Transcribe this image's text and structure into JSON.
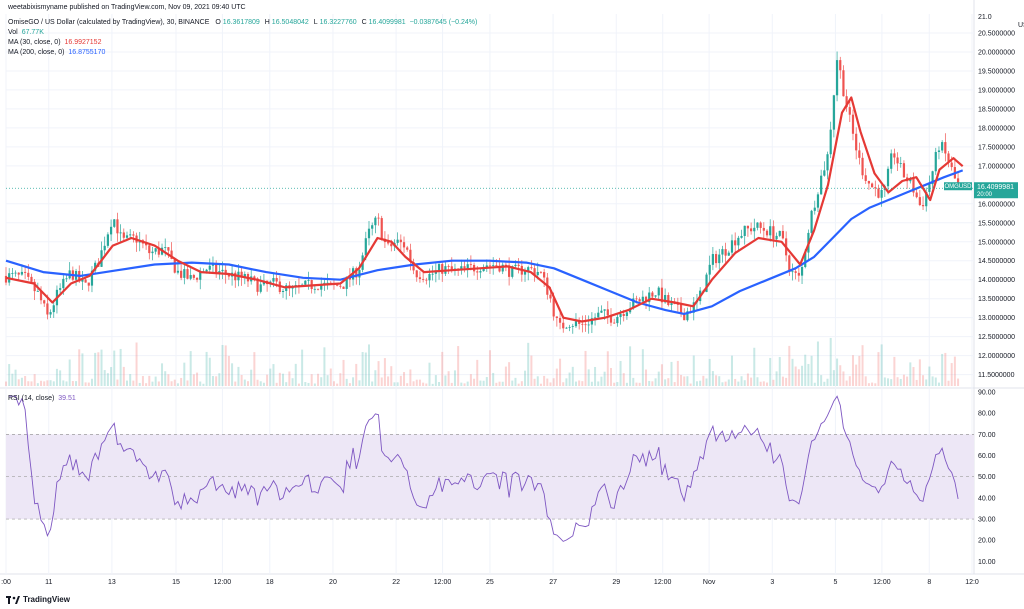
{
  "publisher_line": "weetabixismyname published on TradingView.com, Nov 09, 2021 09:40 UTC",
  "header": {
    "symbol": "OmiseGO / US Dollar (calculated by TradingView), 30, BINANCE",
    "o_label": "O",
    "o": "16.3617809",
    "h_label": "H",
    "h": "16.5048042",
    "l_label": "L",
    "l": "16.3227760",
    "c_label": "C",
    "c": "16.4099981",
    "change": "−0.0387645 (−0.24%)",
    "vol_label": "Vol",
    "vol": "67.77K",
    "ma30_label": "MA (30, close, 0)",
    "ma30": "16.9927152",
    "ma200_label": "MA (200, close, 0)",
    "ma200": "16.8755170"
  },
  "rsi_header": {
    "label": "RSI (14, close)",
    "value": "39.51"
  },
  "price_tag": {
    "symbol": "OMGUSD",
    "value": "16.4099981",
    "countdown": "20:00"
  },
  "footer": {
    "brand": "TradingView"
  },
  "colors": {
    "up": "#26a69a",
    "down": "#ef5350",
    "ma30": "#e53935",
    "ma200": "#2962ff",
    "rsi": "#7e57c2",
    "rsi_band": "#ede7f6",
    "grid": "#f0f3fa",
    "axis_text": "#131722"
  },
  "chart_data": [
    {
      "type": "candlestick",
      "title": "OmiseGO / US Dollar (calculated by TradingView), 30, BINANCE",
      "currency_label": "USD",
      "ylim": [
        11.2,
        21.0
      ],
      "yticks": [
        11.5,
        12.0,
        12.5,
        13.0,
        13.5,
        14.0,
        14.5,
        15.0,
        15.5,
        16.0,
        17.0,
        17.5,
        18.0,
        18.5,
        19.0,
        19.5,
        20.0,
        20.5
      ],
      "ytick_labels": [
        "11.5000000",
        "12.0000000",
        "12.5000000",
        "13.0000000",
        "13.5000000",
        "14.0000000",
        "14.5000000",
        "15.0000000",
        "15.5000000",
        "16.0000000",
        "17.0000000",
        "17.5000000",
        "18.0000000",
        "18.5000000",
        "19.0000000",
        "19.5000000",
        "20.0000000",
        "20.5000000"
      ],
      "top_tick_label": "21.0",
      "x_labels": [
        {
          "label": ":00",
          "t": 0.0
        },
        {
          "label": "11",
          "t": 0.046
        },
        {
          "label": "13",
          "t": 0.114
        },
        {
          "label": "15",
          "t": 0.183
        },
        {
          "label": "12:00",
          "t": 0.233
        },
        {
          "label": "18",
          "t": 0.284
        },
        {
          "label": "20",
          "t": 0.352
        },
        {
          "label": "22",
          "t": 0.42
        },
        {
          "label": "12:00",
          "t": 0.47
        },
        {
          "label": "25",
          "t": 0.521
        },
        {
          "label": "27",
          "t": 0.589
        },
        {
          "label": "29",
          "t": 0.657
        },
        {
          "label": "12:00",
          "t": 0.707
        },
        {
          "label": "Nov",
          "t": 0.757
        },
        {
          "label": "3",
          "t": 0.825
        },
        {
          "label": "5",
          "t": 0.893
        },
        {
          "label": "12:00",
          "t": 0.943
        },
        {
          "label": "8",
          "t": 0.994
        },
        {
          "label": "12:0",
          "t": 1.04
        }
      ],
      "close_path": [
        [
          0.0,
          14.1
        ],
        [
          0.02,
          14.05
        ],
        [
          0.035,
          13.6
        ],
        [
          0.045,
          13.0
        ],
        [
          0.055,
          13.6
        ],
        [
          0.07,
          14.2
        ],
        [
          0.085,
          13.8
        ],
        [
          0.1,
          14.5
        ],
        [
          0.115,
          15.7
        ],
        [
          0.125,
          15.0
        ],
        [
          0.14,
          15.1
        ],
        [
          0.155,
          14.7
        ],
        [
          0.17,
          14.8
        ],
        [
          0.185,
          14.2
        ],
        [
          0.2,
          14.0
        ],
        [
          0.215,
          14.3
        ],
        [
          0.23,
          14.2
        ],
        [
          0.245,
          14.1
        ],
        [
          0.26,
          14.0
        ],
        [
          0.275,
          13.8
        ],
        [
          0.29,
          13.9
        ],
        [
          0.305,
          13.7
        ],
        [
          0.32,
          13.8
        ],
        [
          0.335,
          13.9
        ],
        [
          0.35,
          13.8
        ],
        [
          0.365,
          13.9
        ],
        [
          0.38,
          14.3
        ],
        [
          0.39,
          15.2
        ],
        [
          0.4,
          15.6
        ],
        [
          0.41,
          14.8
        ],
        [
          0.42,
          15.0
        ],
        [
          0.43,
          14.9
        ],
        [
          0.44,
          14.2
        ],
        [
          0.455,
          14.1
        ],
        [
          0.47,
          14.3
        ],
        [
          0.485,
          14.2
        ],
        [
          0.5,
          14.3
        ],
        [
          0.515,
          14.4
        ],
        [
          0.53,
          14.4
        ],
        [
          0.545,
          14.2
        ],
        [
          0.56,
          14.3
        ],
        [
          0.575,
          14.2
        ],
        [
          0.585,
          13.6
        ],
        [
          0.595,
          12.7
        ],
        [
          0.605,
          12.9
        ],
        [
          0.62,
          12.8
        ],
        [
          0.64,
          13.1
        ],
        [
          0.655,
          13.0
        ],
        [
          0.67,
          13.3
        ],
        [
          0.685,
          13.5
        ],
        [
          0.7,
          13.7
        ],
        [
          0.715,
          13.3
        ],
        [
          0.73,
          13.1
        ],
        [
          0.745,
          13.4
        ],
        [
          0.76,
          14.5
        ],
        [
          0.775,
          14.8
        ],
        [
          0.79,
          15.2
        ],
        [
          0.805,
          15.4
        ],
        [
          0.82,
          15.3
        ],
        [
          0.835,
          15.1
        ],
        [
          0.845,
          14.2
        ],
        [
          0.855,
          14.0
        ],
        [
          0.865,
          15.5
        ],
        [
          0.875,
          16.5
        ],
        [
          0.885,
          17.3
        ],
        [
          0.895,
          19.9
        ],
        [
          0.9,
          19.2
        ],
        [
          0.91,
          18.0
        ],
        [
          0.92,
          17.0
        ],
        [
          0.93,
          16.5
        ],
        [
          0.945,
          16.2
        ],
        [
          0.955,
          17.4
        ],
        [
          0.965,
          16.8
        ],
        [
          0.975,
          16.5
        ],
        [
          0.985,
          15.9
        ],
        [
          0.995,
          16.6
        ],
        [
          1.005,
          17.6
        ],
        [
          1.015,
          17.1
        ],
        [
          1.025,
          16.41
        ]
      ],
      "ma30_path": [
        [
          0.0,
          14.05
        ],
        [
          0.03,
          13.9
        ],
        [
          0.05,
          13.4
        ],
        [
          0.07,
          13.9
        ],
        [
          0.09,
          14.1
        ],
        [
          0.115,
          14.9
        ],
        [
          0.135,
          15.1
        ],
        [
          0.16,
          14.9
        ],
        [
          0.185,
          14.5
        ],
        [
          0.21,
          14.2
        ],
        [
          0.24,
          14.15
        ],
        [
          0.27,
          14.0
        ],
        [
          0.3,
          13.8
        ],
        [
          0.33,
          13.85
        ],
        [
          0.36,
          13.9
        ],
        [
          0.38,
          14.3
        ],
        [
          0.4,
          15.1
        ],
        [
          0.415,
          15.0
        ],
        [
          0.43,
          14.6
        ],
        [
          0.45,
          14.2
        ],
        [
          0.48,
          14.25
        ],
        [
          0.51,
          14.3
        ],
        [
          0.54,
          14.35
        ],
        [
          0.565,
          14.2
        ],
        [
          0.585,
          13.8
        ],
        [
          0.6,
          13.0
        ],
        [
          0.62,
          12.9
        ],
        [
          0.645,
          13.0
        ],
        [
          0.67,
          13.2
        ],
        [
          0.695,
          13.5
        ],
        [
          0.72,
          13.4
        ],
        [
          0.74,
          13.3
        ],
        [
          0.76,
          14.0
        ],
        [
          0.785,
          14.7
        ],
        [
          0.81,
          15.1
        ],
        [
          0.835,
          15.0
        ],
        [
          0.855,
          14.4
        ],
        [
          0.87,
          15.3
        ],
        [
          0.885,
          16.5
        ],
        [
          0.9,
          18.4
        ],
        [
          0.91,
          18.8
        ],
        [
          0.92,
          17.9
        ],
        [
          0.935,
          16.8
        ],
        [
          0.95,
          16.3
        ],
        [
          0.965,
          16.6
        ],
        [
          0.98,
          16.7
        ],
        [
          0.995,
          16.1
        ],
        [
          1.005,
          16.9
        ],
        [
          1.02,
          17.2
        ],
        [
          1.03,
          16.99
        ]
      ],
      "ma200_path": [
        [
          0.0,
          14.5
        ],
        [
          0.04,
          14.2
        ],
        [
          0.08,
          14.1
        ],
        [
          0.12,
          14.25
        ],
        [
          0.16,
          14.4
        ],
        [
          0.2,
          14.45
        ],
        [
          0.24,
          14.4
        ],
        [
          0.28,
          14.2
        ],
        [
          0.32,
          14.05
        ],
        [
          0.36,
          14.0
        ],
        [
          0.4,
          14.25
        ],
        [
          0.44,
          14.4
        ],
        [
          0.48,
          14.5
        ],
        [
          0.52,
          14.5
        ],
        [
          0.56,
          14.45
        ],
        [
          0.59,
          14.3
        ],
        [
          0.62,
          14.0
        ],
        [
          0.65,
          13.7
        ],
        [
          0.68,
          13.4
        ],
        [
          0.71,
          13.2
        ],
        [
          0.73,
          13.1
        ],
        [
          0.76,
          13.3
        ],
        [
          0.79,
          13.7
        ],
        [
          0.82,
          14.0
        ],
        [
          0.85,
          14.3
        ],
        [
          0.87,
          14.6
        ],
        [
          0.89,
          15.1
        ],
        [
          0.91,
          15.6
        ],
        [
          0.93,
          15.9
        ],
        [
          0.95,
          16.1
        ],
        [
          0.97,
          16.3
        ],
        [
          0.99,
          16.5
        ],
        [
          1.01,
          16.7
        ],
        [
          1.03,
          16.88
        ]
      ],
      "last_price": 16.4099981
    },
    {
      "type": "line",
      "title": "RSI (14, close)",
      "ylim": [
        5,
        90
      ],
      "yticks": [
        10,
        20,
        30,
        40,
        50,
        60,
        70,
        80,
        90
      ],
      "ytick_labels": [
        "10.00",
        "20.00",
        "30.00",
        "40.00",
        "50.00",
        "60.00",
        "70.00",
        "80.00",
        "90.00"
      ],
      "band": [
        30,
        70
      ],
      "midline": 50,
      "last_value": 39.51
    }
  ]
}
